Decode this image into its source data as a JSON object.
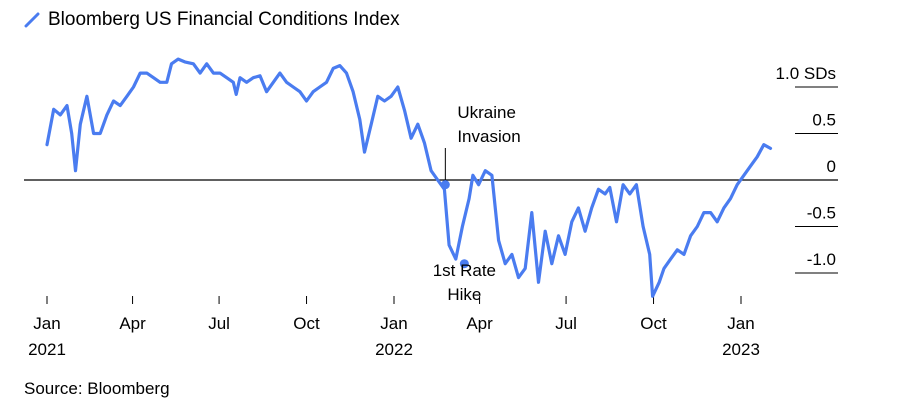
{
  "legend": {
    "label": "Bloomberg US Financial Conditions Index"
  },
  "source": "Source: Bloomberg",
  "colors": {
    "line": "#4A7CF0",
    "axis": "#000000",
    "grid": "#000000"
  },
  "chart_data": {
    "type": "line",
    "title": "",
    "series": [
      {
        "name": "Bloomberg US Financial Conditions Index",
        "x": [
          "2021-01-01",
          "2021-01-08",
          "2021-01-15",
          "2021-01-22",
          "2021-01-27",
          "2021-01-31",
          "2021-02-05",
          "2021-02-12",
          "2021-02-19",
          "2021-02-26",
          "2021-03-05",
          "2021-03-12",
          "2021-03-19",
          "2021-03-26",
          "2021-04-02",
          "2021-04-09",
          "2021-04-16",
          "2021-04-23",
          "2021-04-30",
          "2021-05-07",
          "2021-05-12",
          "2021-05-19",
          "2021-05-26",
          "2021-06-04",
          "2021-06-11",
          "2021-06-18",
          "2021-06-25",
          "2021-07-02",
          "2021-07-09",
          "2021-07-16",
          "2021-07-19",
          "2021-07-23",
          "2021-07-30",
          "2021-08-06",
          "2021-08-13",
          "2021-08-20",
          "2021-08-27",
          "2021-09-03",
          "2021-09-10",
          "2021-09-17",
          "2021-09-24",
          "2021-10-01",
          "2021-10-08",
          "2021-10-15",
          "2021-10-22",
          "2021-10-29",
          "2021-11-05",
          "2021-11-12",
          "2021-11-19",
          "2021-11-26",
          "2021-12-01",
          "2021-12-08",
          "2021-12-15",
          "2021-12-22",
          "2021-12-29",
          "2022-01-05",
          "2022-01-12",
          "2022-01-19",
          "2022-01-26",
          "2022-02-02",
          "2022-02-09",
          "2022-02-16",
          "2022-02-23",
          "2022-02-28",
          "2022-03-07",
          "2022-03-14",
          "2022-03-21",
          "2022-03-25",
          "2022-03-31",
          "2022-04-07",
          "2022-04-14",
          "2022-04-21",
          "2022-04-28",
          "2022-05-05",
          "2022-05-12",
          "2022-05-19",
          "2022-05-26",
          "2022-06-02",
          "2022-06-09",
          "2022-06-16",
          "2022-06-23",
          "2022-06-30",
          "2022-07-07",
          "2022-07-14",
          "2022-07-21",
          "2022-07-28",
          "2022-08-04",
          "2022-08-11",
          "2022-08-16",
          "2022-08-23",
          "2022-08-30",
          "2022-09-06",
          "2022-09-13",
          "2022-09-20",
          "2022-09-27",
          "2022-09-30",
          "2022-10-07",
          "2022-10-12",
          "2022-10-19",
          "2022-10-26",
          "2022-11-02",
          "2022-11-09",
          "2022-11-16",
          "2022-11-23",
          "2022-11-30",
          "2022-12-07",
          "2022-12-14",
          "2022-12-21",
          "2022-12-28",
          "2023-01-04",
          "2023-01-11",
          "2023-01-18",
          "2023-01-25",
          "2023-02-01"
        ],
        "y": [
          0.38,
          0.76,
          0.7,
          0.8,
          0.5,
          0.1,
          0.6,
          0.9,
          0.5,
          0.5,
          0.7,
          0.85,
          0.8,
          0.9,
          1.0,
          1.15,
          1.15,
          1.1,
          1.05,
          1.05,
          1.25,
          1.3,
          1.27,
          1.25,
          1.15,
          1.25,
          1.15,
          1.15,
          1.1,
          1.05,
          0.92,
          1.1,
          1.05,
          1.1,
          1.12,
          0.95,
          1.05,
          1.15,
          1.05,
          1.0,
          0.95,
          0.85,
          0.95,
          1.0,
          1.05,
          1.2,
          1.23,
          1.15,
          0.95,
          0.65,
          0.3,
          0.6,
          0.9,
          0.85,
          0.9,
          1.0,
          0.75,
          0.45,
          0.6,
          0.4,
          0.1,
          0.0,
          -0.1,
          -0.7,
          -0.85,
          -0.5,
          -0.2,
          0.05,
          -0.05,
          0.1,
          0.05,
          -0.65,
          -0.9,
          -0.8,
          -1.05,
          -0.95,
          -0.35,
          -1.1,
          -0.55,
          -0.9,
          -0.6,
          -0.8,
          -0.45,
          -0.3,
          -0.55,
          -0.3,
          -0.1,
          -0.15,
          -0.08,
          -0.45,
          -0.05,
          -0.15,
          -0.05,
          -0.5,
          -0.8,
          -1.25,
          -1.1,
          -0.95,
          -0.85,
          -0.75,
          -0.8,
          -0.6,
          -0.5,
          -0.35,
          -0.35,
          -0.45,
          -0.3,
          -0.2,
          -0.05,
          0.05,
          0.15,
          0.25,
          0.38,
          0.34
        ]
      }
    ],
    "ylabel": "",
    "ylim": [
      -1.3,
      1.3
    ],
    "yticks": [
      1.0,
      0.5,
      0,
      -0.5,
      -1.0
    ],
    "ytick_labels": [
      "1.0 SDs",
      "0.5",
      "0",
      "-0.5",
      "-1.0"
    ],
    "xlim": [
      "2021-01-01",
      "2023-02-15"
    ],
    "xticks": [
      {
        "date": "2021-01-01",
        "label": "Jan",
        "year": "2021"
      },
      {
        "date": "2021-04-01",
        "label": "Apr",
        "year": ""
      },
      {
        "date": "2021-07-01",
        "label": "Jul",
        "year": ""
      },
      {
        "date": "2021-10-01",
        "label": "Oct",
        "year": ""
      },
      {
        "date": "2022-01-01",
        "label": "Jan",
        "year": "2022"
      },
      {
        "date": "2022-04-01",
        "label": "Apr",
        "year": ""
      },
      {
        "date": "2022-07-01",
        "label": "Jul",
        "year": ""
      },
      {
        "date": "2022-10-01",
        "label": "Oct",
        "year": ""
      },
      {
        "date": "2023-01-01",
        "label": "Jan",
        "year": "2023"
      }
    ],
    "annotations": [
      {
        "date": "2022-02-24",
        "value": -0.05,
        "lines": [
          "Ukraine",
          "Invasion"
        ]
      },
      {
        "date": "2022-03-16",
        "value": -0.9,
        "lines": [
          "1st Rate",
          "Hike"
        ]
      }
    ],
    "grid": false,
    "zero_line": true,
    "legend_position": "top-left"
  }
}
